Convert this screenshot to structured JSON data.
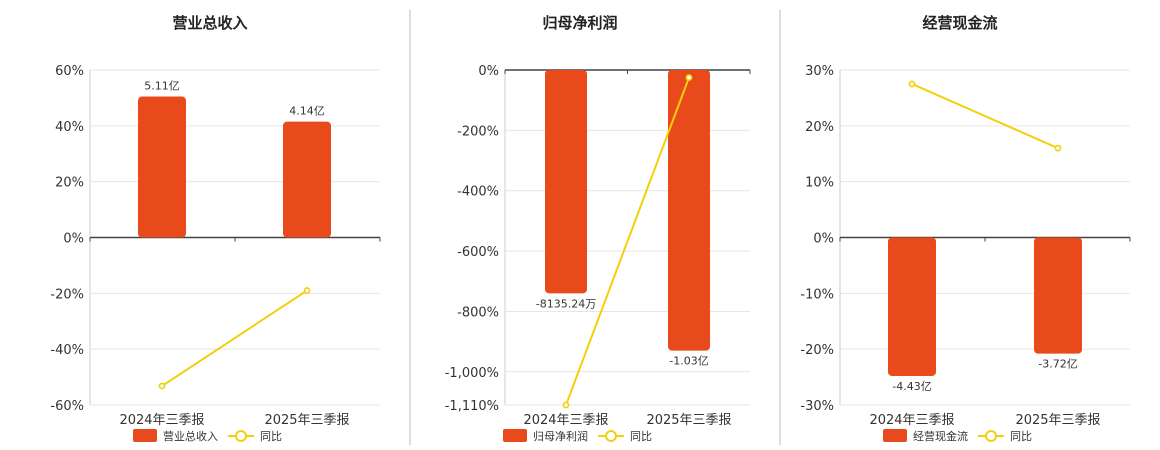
{
  "colors": {
    "bar": "#e84a1b",
    "line": "#f2d00c",
    "grid": "#e6e6e6",
    "axis": "#444444",
    "divider": "#bbbbbb"
  },
  "chart_data": [
    {
      "type": "bar",
      "title": "营业总收入",
      "categories": [
        "2024年三季报",
        "2025年三季报"
      ],
      "ylim": [
        -60,
        60
      ],
      "yticks": [
        60,
        40,
        20,
        0,
        -20,
        -40,
        -60
      ],
      "ytick_labels": [
        "60%",
        "40%",
        "20%",
        "0%",
        "-20%",
        "-40%",
        "-60%"
      ],
      "series": [
        {
          "name": "营业总收入",
          "kind": "bar",
          "values": [
            50.5,
            41.5
          ],
          "labels": [
            "5.11亿",
            "4.14亿"
          ]
        },
        {
          "name": "同比",
          "kind": "line",
          "values": [
            -53.2,
            -19.0
          ]
        }
      ],
      "legend": "bottom"
    },
    {
      "type": "bar",
      "title": "归母净利润",
      "categories": [
        "2024年三季报",
        "2025年三季报"
      ],
      "ylim": [
        -1110,
        0
      ],
      "yticks": [
        0,
        -200,
        -400,
        -600,
        -800,
        -1000,
        -1110
      ],
      "ytick_labels": [
        "0%",
        "-200%",
        "-400%",
        "-600%",
        "-800%",
        "-1,000%",
        "-1,110%"
      ],
      "series": [
        {
          "name": "归母净利润",
          "kind": "bar",
          "values": [
            -740,
            -930
          ],
          "labels": [
            "-8135.24万",
            "-1.03亿"
          ]
        },
        {
          "name": "同比",
          "kind": "line",
          "values": [
            -1110,
            -25
          ]
        }
      ],
      "legend": "bottom"
    },
    {
      "type": "bar",
      "title": "经营现金流",
      "categories": [
        "2024年三季报",
        "2025年三季报"
      ],
      "ylim": [
        -30,
        30
      ],
      "yticks": [
        30,
        20,
        10,
        0,
        -10,
        -20,
        -30
      ],
      "ytick_labels": [
        "30%",
        "20%",
        "10%",
        "0%",
        "-10%",
        "-20%",
        "-30%"
      ],
      "series": [
        {
          "name": "经营现金流",
          "kind": "bar",
          "values": [
            -24.8,
            -20.8
          ],
          "labels": [
            "-4.43亿",
            "-3.72亿"
          ]
        },
        {
          "name": "同比",
          "kind": "line",
          "values": [
            27.5,
            16.0
          ]
        }
      ],
      "legend": "bottom"
    }
  ]
}
